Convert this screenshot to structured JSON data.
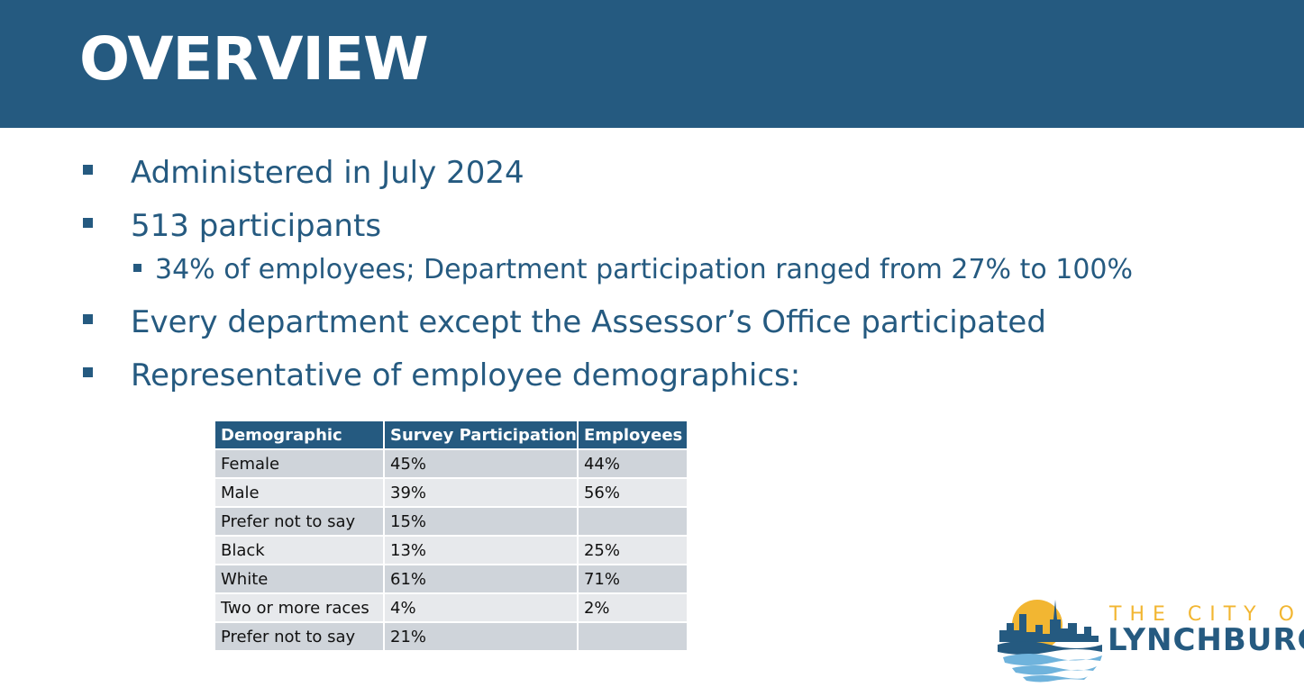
{
  "slide": {
    "title": "OVERVIEW"
  },
  "bullets": [
    "Administered in July 2024",
    "513 participants",
    "Every department except the Assessor’s Office participated",
    "Representative of employee demographics:"
  ],
  "sub_bullets": [
    "34% of employees; Department participation ranged from 27% to 100%"
  ],
  "table": {
    "headers": [
      "Demographic",
      "Survey Participation",
      "Employees"
    ],
    "rows": [
      [
        "Female",
        "45%",
        "44%"
      ],
      [
        "Male",
        "39%",
        "56%"
      ],
      [
        "Prefer not to say",
        "15%",
        ""
      ],
      [
        "Black",
        "13%",
        "25%"
      ],
      [
        "White",
        "61%",
        "71%"
      ],
      [
        "Two or more races",
        "4%",
        "2%"
      ],
      [
        "Prefer not to say",
        "21%",
        ""
      ]
    ]
  },
  "logo": {
    "line1": "THE CITY OF",
    "line2": "LYNCHBURG"
  },
  "colors": {
    "brand_blue": "#255A80",
    "sun_yellow": "#F2B632",
    "row_dark": "#CFD4DA",
    "row_light": "#E7E9EC"
  }
}
